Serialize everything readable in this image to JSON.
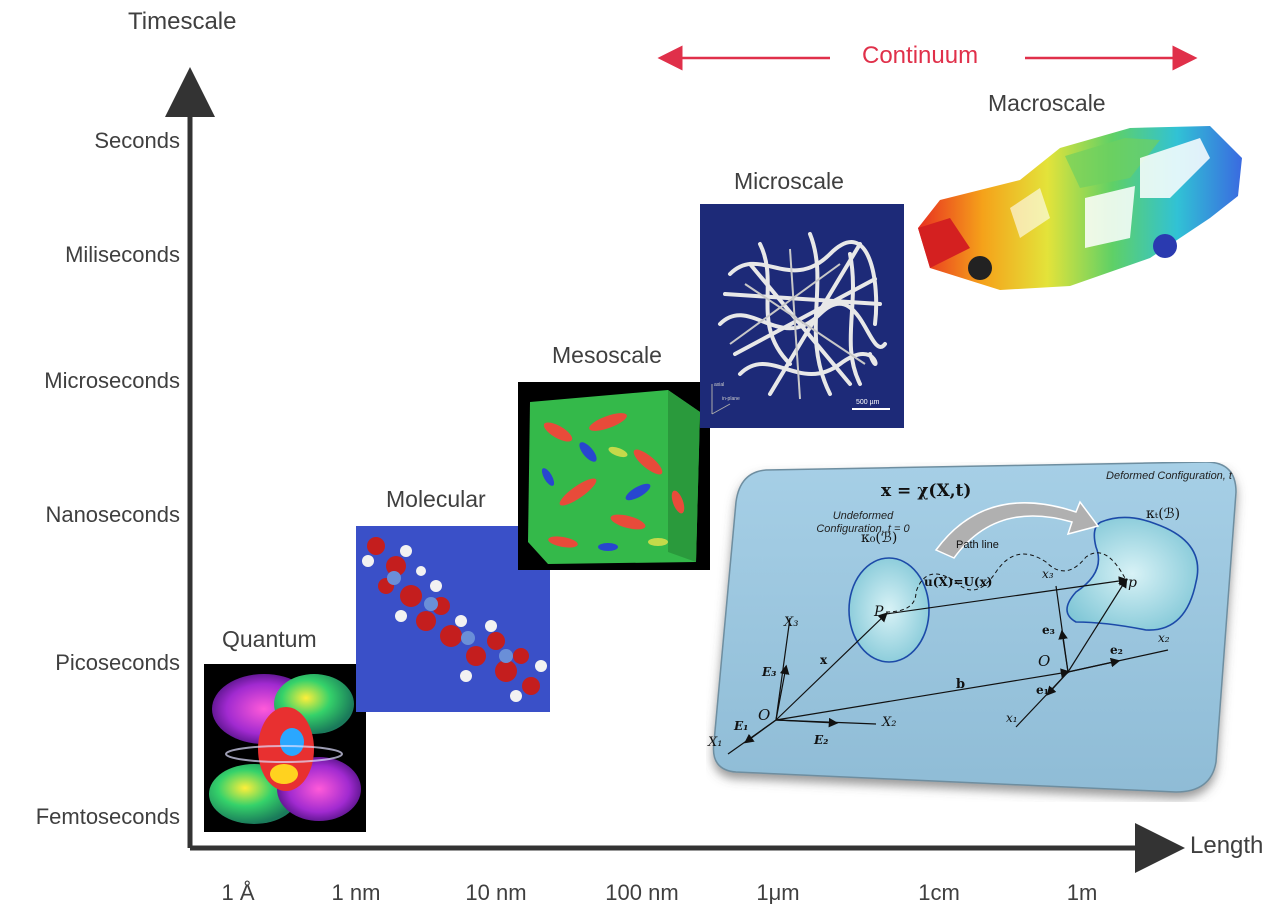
{
  "axes": {
    "y_title": "Timescale",
    "x_title": "Length",
    "y_ticks": [
      "Seconds",
      "Miliseconds",
      "Microseconds",
      "Nanoseconds",
      "Picoseconds",
      "Femtoseconds"
    ],
    "x_ticks": [
      "1 Å",
      "1 nm",
      "10 nm",
      "100 nm",
      "1μm",
      "1cm",
      "1m"
    ]
  },
  "continuum_label": "Continuum",
  "scales": [
    {
      "name": "Quantum"
    },
    {
      "name": "Molecular"
    },
    {
      "name": "Mesoscale"
    },
    {
      "name": "Microscale"
    },
    {
      "name": "Macroscale"
    }
  ],
  "microscale_scalebar": "500 µm",
  "microscale_axes": [
    "axial",
    "in-plane"
  ],
  "continuum_diagram": {
    "equation": "x = χ(X,t)",
    "undeformed": "Undeformed Configuration, t = 0",
    "undeformed_kappa": "κ₀(ℬ)",
    "deformed": "Deformed Configuration, t",
    "deformed_kappa": "κₜ(ℬ)",
    "path_line": "Path line",
    "displacement": "u(X)=U(x)",
    "point_P": "P",
    "point_p": "p",
    "origin_O": "O",
    "vector_x": "x",
    "vector_b": "b",
    "X1": "X₁",
    "X2": "X₂",
    "X3": "X₃",
    "E1": "E₁",
    "E2": "E₂",
    "E3": "E₃",
    "x1": "x₁",
    "x2": "x₂",
    "x3": "x₃",
    "e1": "e₁",
    "e2": "e₂",
    "e3": "e₃"
  }
}
